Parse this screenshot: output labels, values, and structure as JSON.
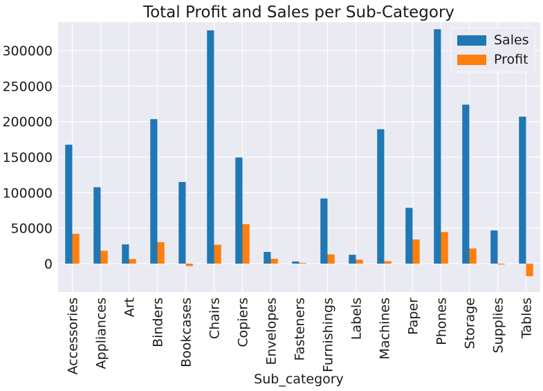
{
  "chart_data": {
    "type": "bar",
    "title": "Total Profit and Sales per Sub-Category",
    "xlabel": "Sub_category",
    "ylabel": "",
    "ylim": [
      -40000,
      340000
    ],
    "yticks": [
      0,
      50000,
      100000,
      150000,
      200000,
      250000,
      300000
    ],
    "ytick_labels": [
      "0",
      "50000",
      "100000",
      "150000",
      "200000",
      "250000",
      "300000"
    ],
    "grid": true,
    "legend_position": "top-right",
    "categories": [
      "Accessories",
      "Appliances",
      "Art",
      "Binders",
      "Bookcases",
      "Chairs",
      "Copiers",
      "Envelopes",
      "Fasteners",
      "Furnishings",
      "Labels",
      "Machines",
      "Paper",
      "Phones",
      "Storage",
      "Supplies",
      "Tables"
    ],
    "series": [
      {
        "name": "Sales",
        "color": "#1f77b4",
        "values": [
          167380,
          107532,
          27119,
          203413,
          114880,
          328449,
          149528,
          16476,
          3024,
          91705,
          12486,
          189239,
          78479,
          330007,
          223844,
          46674,
          206966
        ]
      },
      {
        "name": "Profit",
        "color": "#ff7f0e",
        "values": [
          41937,
          18138,
          6528,
          30222,
          -3473,
          26590,
          55618,
          6964,
          950,
          13059,
          5546,
          3385,
          34054,
          44516,
          21279,
          -1189,
          -17725
        ]
      }
    ]
  },
  "colors": {
    "plot_background": "#eaeaf2",
    "grid": "#ffffff"
  }
}
